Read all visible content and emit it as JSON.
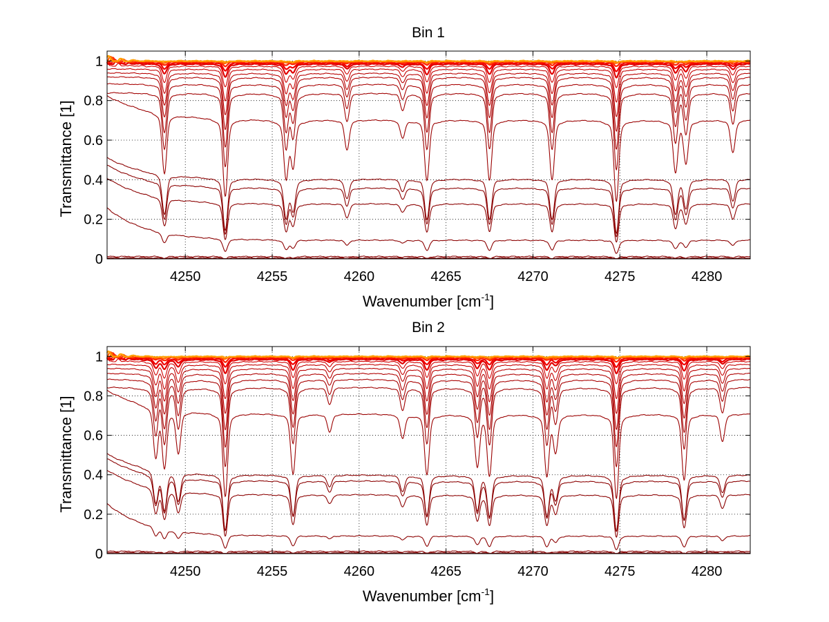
{
  "chart_data": [
    {
      "type": "line",
      "title": "Bin 1",
      "xlabel_main": "Wavenumber [cm",
      "xlabel_sup": "-1",
      "xlabel_tail": "]",
      "ylabel": "Transmittance [1]",
      "xlim": [
        4245.5,
        4282.5
      ],
      "ylim": [
        0,
        1.05
      ],
      "xticks": [
        4250,
        4255,
        4260,
        4265,
        4270,
        4275,
        4280
      ],
      "xtick_labels": [
        "4250",
        "4255",
        "4260",
        "4265",
        "4270",
        "4275",
        "4280"
      ],
      "yticks": [
        0,
        0.2,
        0.4,
        0.6,
        0.8,
        1
      ],
      "ytick_labels": [
        "0",
        "0.2",
        "0.4",
        "0.6",
        "0.8",
        "1"
      ],
      "grid": "dotted",
      "lines": [
        {
          "color": "#800000",
          "baseline": 0.0,
          "depth": 0.0
        },
        {
          "color": "#800000",
          "baseline": 0.005,
          "depth": 0.004
        },
        {
          "color": "#8a0000",
          "baseline": 0.012,
          "depth": 0.009
        },
        {
          "color": "#8b0000",
          "baseline": 0.095,
          "depth": 0.05
        },
        {
          "color": "#8b0000",
          "baseline": 0.28,
          "depth": 0.14
        },
        {
          "color": "#8b0000",
          "baseline": 0.36,
          "depth": 0.18
        },
        {
          "color": "#8b0000",
          "baseline": 0.405,
          "depth": 0.2
        },
        {
          "color": "#9a0000",
          "baseline": 0.705,
          "depth": 0.3
        },
        {
          "color": "#a00000",
          "baseline": 0.84,
          "depth": 0.28
        },
        {
          "color": "#a80000",
          "baseline": 0.885,
          "depth": 0.24
        },
        {
          "color": "#b00000",
          "baseline": 0.92,
          "depth": 0.2
        },
        {
          "color": "#b80000",
          "baseline": 0.94,
          "depth": 0.16
        },
        {
          "color": "#c40000",
          "baseline": 0.96,
          "depth": 0.12
        },
        {
          "color": "#d00000",
          "baseline": 0.975,
          "depth": 0.08
        },
        {
          "color": "#e00000",
          "baseline": 0.985,
          "depth": 0.05
        },
        {
          "color": "#f00000",
          "baseline": 0.99,
          "depth": 0.03
        },
        {
          "color": "#ff2000",
          "baseline": 0.995,
          "depth": 0.015
        },
        {
          "color": "#ff6000",
          "baseline": 0.998,
          "depth": 0.008
        },
        {
          "color": "#ffa000",
          "baseline": 1.0,
          "depth": 0.004
        }
      ],
      "dips": [
        {
          "x": 4248.8,
          "s": 1.0
        },
        {
          "x": 4252.3,
          "s": 1.3
        },
        {
          "x": 4255.8,
          "s": 0.95
        },
        {
          "x": 4256.2,
          "s": 0.75
        },
        {
          "x": 4259.3,
          "s": 0.5
        },
        {
          "x": 4262.5,
          "s": 0.3
        },
        {
          "x": 4263.9,
          "s": 1.0
        },
        {
          "x": 4267.5,
          "s": 1.0
        },
        {
          "x": 4271.1,
          "s": 1.0
        },
        {
          "x": 4274.8,
          "s": 1.35
        },
        {
          "x": 4278.2,
          "s": 0.85
        },
        {
          "x": 4278.8,
          "s": 0.7
        },
        {
          "x": 4281.5,
          "s": 0.55
        }
      ]
    },
    {
      "type": "line",
      "title": "Bin 2",
      "xlabel_main": "Wavenumber [cm",
      "xlabel_sup": "-1",
      "xlabel_tail": "]",
      "ylabel": "Transmittance [1]",
      "xlim": [
        4245.5,
        4282.5
      ],
      "ylim": [
        0,
        1.05
      ],
      "xticks": [
        4250,
        4255,
        4260,
        4265,
        4270,
        4275,
        4280
      ],
      "xtick_labels": [
        "4250",
        "4255",
        "4260",
        "4265",
        "4270",
        "4275",
        "4280"
      ],
      "yticks": [
        0,
        0.2,
        0.4,
        0.6,
        0.8,
        1
      ],
      "ytick_labels": [
        "0",
        "0.2",
        "0.4",
        "0.6",
        "0.8",
        "1"
      ],
      "grid": "dotted",
      "lines": [
        {
          "color": "#800000",
          "baseline": 0.0,
          "depth": 0.0
        },
        {
          "color": "#800000",
          "baseline": 0.005,
          "depth": 0.004
        },
        {
          "color": "#8a0000",
          "baseline": 0.012,
          "depth": 0.009
        },
        {
          "color": "#8b0000",
          "baseline": 0.09,
          "depth": 0.05
        },
        {
          "color": "#8b0000",
          "baseline": 0.3,
          "depth": 0.15
        },
        {
          "color": "#8b0000",
          "baseline": 0.37,
          "depth": 0.18
        },
        {
          "color": "#8b0000",
          "baseline": 0.4,
          "depth": 0.2
        },
        {
          "color": "#9a0000",
          "baseline": 0.71,
          "depth": 0.3
        },
        {
          "color": "#a00000",
          "baseline": 0.845,
          "depth": 0.28
        },
        {
          "color": "#a80000",
          "baseline": 0.885,
          "depth": 0.24
        },
        {
          "color": "#b00000",
          "baseline": 0.915,
          "depth": 0.2
        },
        {
          "color": "#b80000",
          "baseline": 0.94,
          "depth": 0.16
        },
        {
          "color": "#c40000",
          "baseline": 0.96,
          "depth": 0.12
        },
        {
          "color": "#d00000",
          "baseline": 0.975,
          "depth": 0.08
        },
        {
          "color": "#e00000",
          "baseline": 0.985,
          "depth": 0.05
        },
        {
          "color": "#f00000",
          "baseline": 0.99,
          "depth": 0.03
        },
        {
          "color": "#ff2000",
          "baseline": 0.995,
          "depth": 0.015
        },
        {
          "color": "#ff6000",
          "baseline": 0.998,
          "depth": 0.008
        },
        {
          "color": "#ffa000",
          "baseline": 1.0,
          "depth": 0.004
        }
      ],
      "dips": [
        {
          "x": 4248.3,
          "s": 0.8
        },
        {
          "x": 4248.8,
          "s": 0.95
        },
        {
          "x": 4249.6,
          "s": 0.7
        },
        {
          "x": 4252.3,
          "s": 1.4
        },
        {
          "x": 4256.2,
          "s": 1.0
        },
        {
          "x": 4258.3,
          "s": 0.3
        },
        {
          "x": 4262.5,
          "s": 0.4
        },
        {
          "x": 4263.9,
          "s": 1.0
        },
        {
          "x": 4266.8,
          "s": 0.85
        },
        {
          "x": 4267.5,
          "s": 1.0
        },
        {
          "x": 4270.8,
          "s": 1.0
        },
        {
          "x": 4271.3,
          "s": 0.6
        },
        {
          "x": 4274.8,
          "s": 1.4
        },
        {
          "x": 4278.7,
          "s": 1.1
        },
        {
          "x": 4280.9,
          "s": 0.45
        }
      ]
    }
  ]
}
